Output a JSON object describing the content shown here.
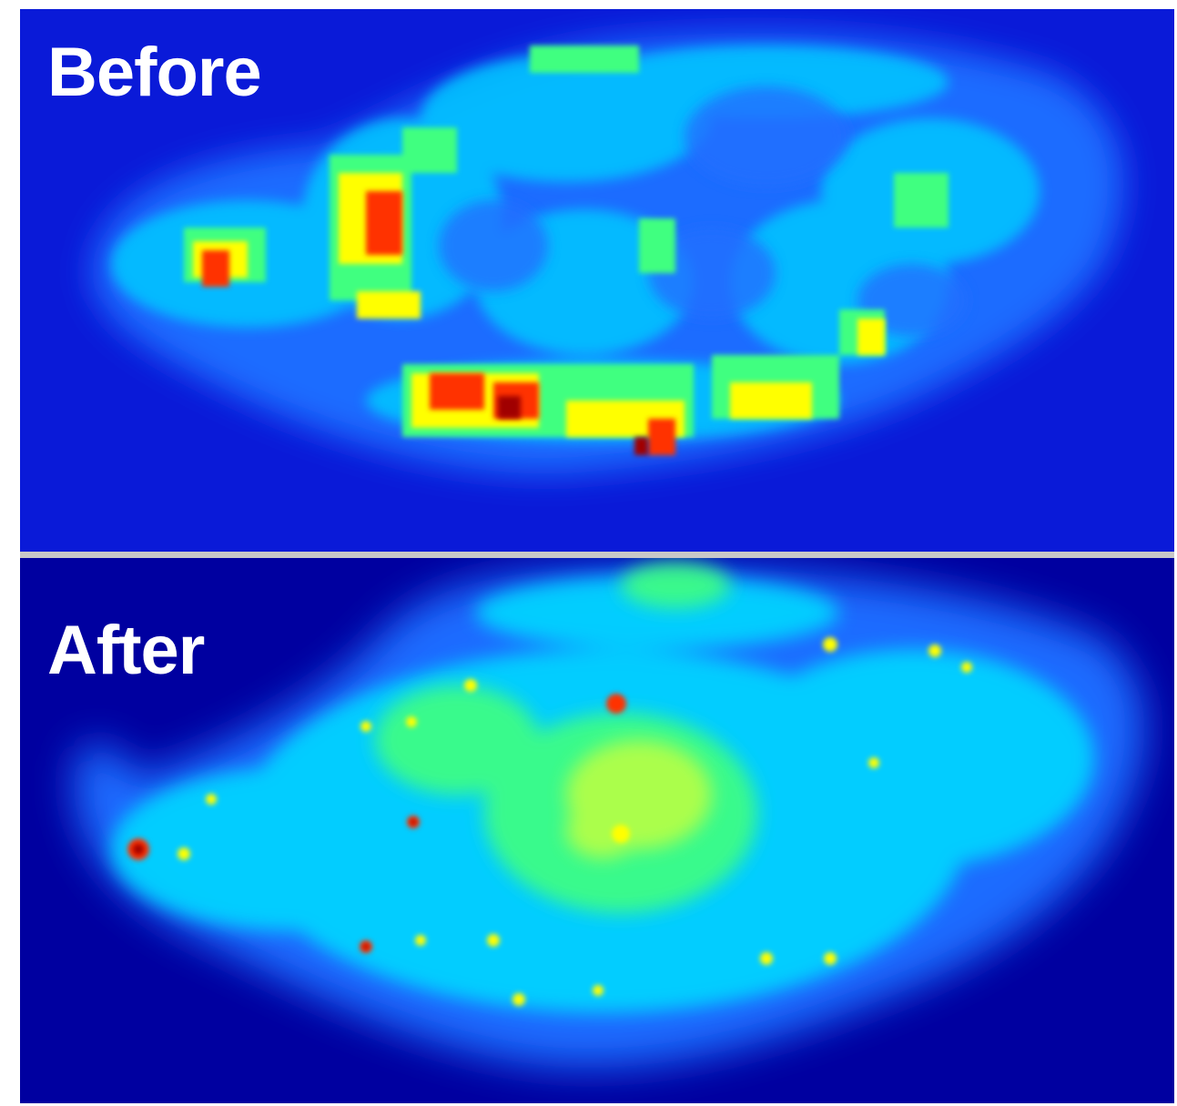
{
  "figure": {
    "panels": [
      {
        "label": "Before",
        "colors": {
          "background": "#0a1ad8",
          "cell": "#1e6cff",
          "mid": "#00d8ff",
          "high": "#40ff80",
          "peak": "#ffff00",
          "hot": "#ff3000",
          "max": "#a00000"
        }
      },
      {
        "label": "After",
        "colors": {
          "background": "#0000a0",
          "cell": "#1e6cff",
          "mid": "#00d8ff",
          "high": "#40ff80",
          "peak": "#ffff00",
          "hot": "#ff3000",
          "max": "#a00000"
        }
      }
    ]
  }
}
